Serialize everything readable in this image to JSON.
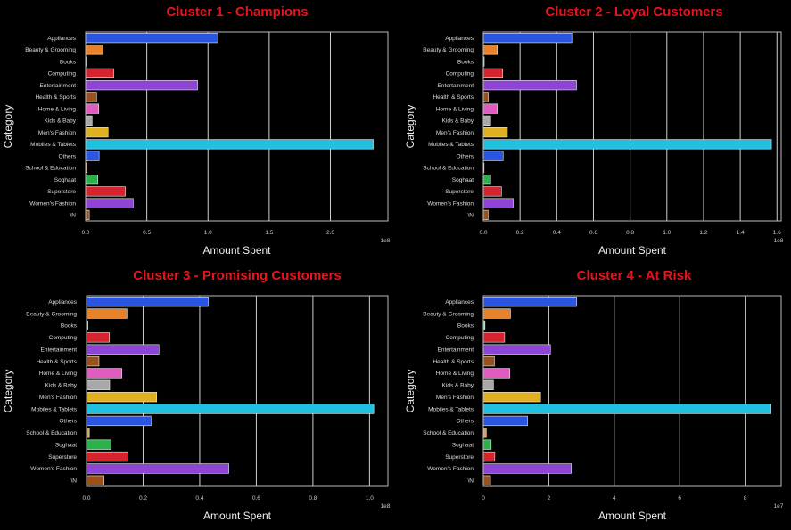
{
  "chart_data": [
    {
      "type": "bar",
      "orientation": "horizontal",
      "title": "Cluster 1 - Champions",
      "xlabel": "Amount Spent",
      "ylabel": "Category",
      "x_offset_label": "1e8",
      "xlim": [
        0,
        2.47
      ],
      "xticks": [
        "0.0",
        "0.5",
        "1.0",
        "1.5",
        "2.0"
      ],
      "xtick_values": [
        0,
        0.5,
        1.0,
        1.5,
        2.0
      ],
      "grid": true,
      "categories": [
        "Appliances",
        "Beauty & Grooming",
        "Books",
        "Computing",
        "Entertainment",
        "Health & Sports",
        "Home & Living",
        "Kids & Baby",
        "Men's Fashion",
        "Mobiles & Tablets",
        "Others",
        "School & Education",
        "Soghaat",
        "Superstore",
        "Women's Fashion",
        "\\N"
      ],
      "values": [
        1.08,
        0.14,
        0.0,
        0.23,
        0.915,
        0.09,
        0.107,
        0.053,
        0.184,
        2.35,
        0.11,
        0.012,
        0.1,
        0.325,
        0.389,
        0.03
      ]
    },
    {
      "type": "bar",
      "orientation": "horizontal",
      "title": "Cluster 2 - Loyal Customers",
      "xlabel": "Amount Spent",
      "ylabel": "Category",
      "x_offset_label": "1e8",
      "xlim": [
        0,
        1.623
      ],
      "xticks": [
        "0.0",
        "0.2",
        "0.4",
        "0.6",
        "0.8",
        "1.0",
        "1.2",
        "1.4",
        "1.6"
      ],
      "xtick_values": [
        0,
        0.2,
        0.4,
        0.6,
        0.8,
        1.0,
        1.2,
        1.4,
        1.6
      ],
      "grid": true,
      "categories": [
        "Appliances",
        "Beauty & Grooming",
        "Books",
        "Computing",
        "Entertainment",
        "Health & Sports",
        "Home & Living",
        "Kids & Baby",
        "Men's Fashion",
        "Mobiles & Tablets",
        "Others",
        "School & Education",
        "Soghaat",
        "Superstore",
        "Women's Fashion",
        "\\N"
      ],
      "values": [
        0.482,
        0.076,
        0.005,
        0.105,
        0.508,
        0.027,
        0.076,
        0.04,
        0.131,
        1.57,
        0.108,
        0.004,
        0.04,
        0.099,
        0.163,
        0.026
      ]
    },
    {
      "type": "bar",
      "orientation": "horizontal",
      "title": "Cluster 3 - Promising Customers",
      "xlabel": "Amount Spent",
      "ylabel": "Category",
      "x_offset_label": "1e8",
      "xlim": [
        0,
        1.065
      ],
      "xticks": [
        "0.0",
        "0.2",
        "0.4",
        "0.6",
        "0.8",
        "1.0"
      ],
      "xtick_values": [
        0,
        0.2,
        0.4,
        0.6,
        0.8,
        1.0
      ],
      "grid": true,
      "categories": [
        "Appliances",
        "Beauty & Grooming",
        "Books",
        "Computing",
        "Entertainment",
        "Health & Sports",
        "Home & Living",
        "Kids & Baby",
        "Men's Fashion",
        "Mobiles & Tablets",
        "Others",
        "School & Education",
        "Soghaat",
        "Superstore",
        "Women's Fashion",
        "\\N"
      ],
      "values": [
        0.43,
        0.143,
        0.005,
        0.081,
        0.256,
        0.044,
        0.125,
        0.082,
        0.248,
        1.015,
        0.228,
        0.01,
        0.087,
        0.147,
        0.503,
        0.062
      ]
    },
    {
      "type": "bar",
      "orientation": "horizontal",
      "title": "Cluster 4 - At Risk",
      "xlabel": "Amount Spent",
      "ylabel": "Category",
      "x_offset_label": "1e7",
      "xlim": [
        0,
        9.1
      ],
      "xticks": [
        "0",
        "2",
        "4",
        "6",
        "8"
      ],
      "xtick_values": [
        0,
        2,
        4,
        6,
        8
      ],
      "grid": true,
      "categories": [
        "Appliances",
        "Beauty & Grooming",
        "Books",
        "Computing",
        "Entertainment",
        "Health & Sports",
        "Home & Living",
        "Kids & Baby",
        "Men's Fashion",
        "Mobiles & Tablets",
        "Others",
        "School & Education",
        "Soghaat",
        "Superstore",
        "Women's Fashion",
        "\\N"
      ],
      "values": [
        2.85,
        0.83,
        0.05,
        0.65,
        2.05,
        0.34,
        0.81,
        0.31,
        1.75,
        8.79,
        1.35,
        0.09,
        0.24,
        0.35,
        2.69,
        0.22
      ]
    }
  ],
  "colors": {
    "background": "#000000",
    "title": "#e8141c",
    "bars": [
      "#2a55e0",
      "#e8822a",
      "#8fd8b0",
      "#d6242f",
      "#8e44d4",
      "#9a521c",
      "#e05cc0",
      "#a8a8a8",
      "#e0b020",
      "#1fc0e0",
      "#2a55e0",
      "#e0a060",
      "#2bb04a",
      "#d6242f",
      "#8e44d4",
      "#9a521c"
    ]
  }
}
